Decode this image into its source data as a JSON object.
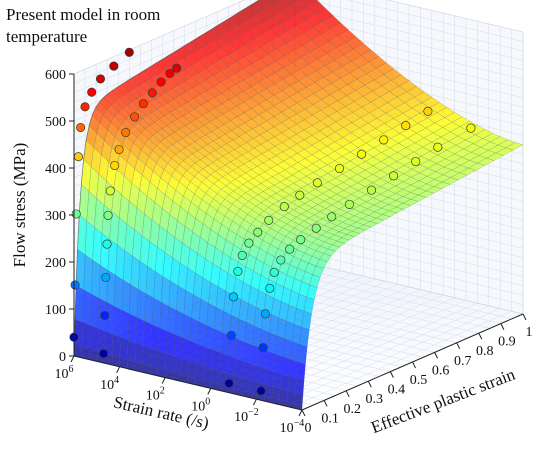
{
  "chart_data": {
    "type": "surface3d",
    "title": "Present model in room temperature",
    "xlabel": "Effective plastic strain",
    "ylabel": "Strain rate (/s)",
    "zlabel": "Flow stress (MPa)",
    "x_ticks": [
      "0",
      "0.1",
      "0.2",
      "0.3",
      "0.4",
      "0.5",
      "0.6",
      "0.7",
      "0.8",
      "0.9",
      "1"
    ],
    "xlim": [
      0,
      1
    ],
    "y_ticks": [
      {
        "base": "10",
        "exp": "6"
      },
      {
        "base": "10",
        "exp": "4"
      },
      {
        "base": "10",
        "exp": "2"
      },
      {
        "base": "10",
        "exp": "0"
      },
      {
        "base": "10",
        "exp": "−2"
      },
      {
        "base": "10",
        "exp": "−4"
      }
    ],
    "ylim_log10": [
      -4,
      6
    ],
    "z_ticks": [
      "0",
      "100",
      "200",
      "300",
      "400",
      "500",
      "600"
    ],
    "zlim": [
      0,
      600
    ],
    "surface": {
      "description_values": "flow stress vs strain and strain rate",
      "stress_at_strain_1": {
        "log_rate_minus4": 360,
        "log_rate_6": 600
      },
      "colormap": "jet"
    },
    "series": [
      {
        "log10_rate": 6,
        "strain": [
          0.0,
          0.005,
          0.01,
          0.02,
          0.03,
          0.05,
          0.08,
          0.12,
          0.18,
          0.25
        ],
        "stress": [
          40,
          150,
          300,
          420,
          480,
          520,
          545,
          565,
          580,
          595
        ]
      },
      {
        "log10_rate": 4.7,
        "strain": [
          0.0,
          0.005,
          0.01,
          0.015,
          0.02,
          0.03,
          0.05,
          0.07,
          0.1,
          0.14,
          0.18,
          0.22,
          0.26,
          0.3,
          0.33
        ],
        "stress": [
          20,
          100,
          180,
          250,
          310,
          360,
          410,
          440,
          470,
          495,
          515,
          530,
          545,
          555,
          560
        ]
      },
      {
        "log10_rate": -0.8,
        "strain": [
          0.0,
          0.01,
          0.02,
          0.04,
          0.06,
          0.09,
          0.13,
          0.18,
          0.25,
          0.32,
          0.4,
          0.5,
          0.6,
          0.7,
          0.8,
          0.9
        ],
        "stress": [
          20,
          120,
          200,
          250,
          280,
          300,
          315,
          330,
          345,
          355,
          365,
          375,
          385,
          395,
          405,
          415
        ]
      },
      {
        "log10_rate": -2.2,
        "strain": [
          0.0,
          0.01,
          0.02,
          0.04,
          0.06,
          0.09,
          0.13,
          0.18,
          0.25,
          0.32,
          0.4,
          0.5,
          0.6,
          0.7,
          0.8,
          0.95
        ],
        "stress": [
          20,
          110,
          180,
          230,
          260,
          280,
          295,
          305,
          315,
          325,
          335,
          345,
          355,
          365,
          375,
          385
        ]
      }
    ]
  }
}
